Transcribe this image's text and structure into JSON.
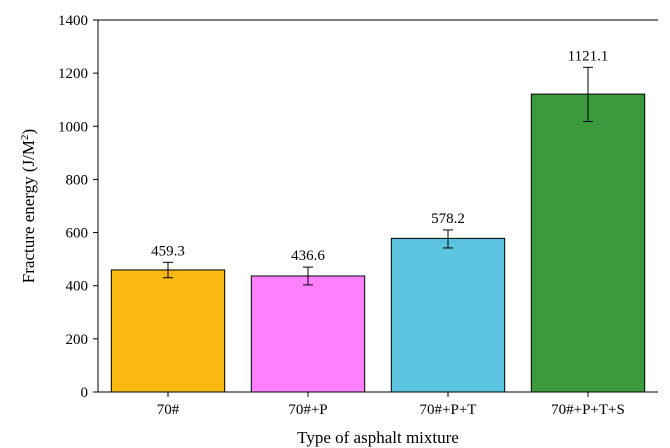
{
  "chart_data": {
    "type": "bar",
    "categories": [
      "70#",
      "70#+P",
      "70#+P+T",
      "70#+P+T+S"
    ],
    "values": [
      459.3,
      436.6,
      578.2,
      1121.1
    ],
    "value_labels": [
      "459.3",
      "436.6",
      "578.2",
      "1121.1"
    ],
    "error_bars": [
      [
        430,
        488
      ],
      [
        403,
        470
      ],
      [
        542,
        610
      ],
      [
        1018,
        1222
      ]
    ],
    "colors": [
      "#FDB913",
      "#FF80FF",
      "#5BC4DE",
      "#3B9A3B"
    ],
    "xlabel": "Type of asphalt mixture",
    "ylabel": "Fracture energy (J/M",
    "ylabel_superscript": "2",
    "ylabel_suffix": ")",
    "ylim": [
      0,
      1400
    ],
    "yticks": [
      0,
      200,
      400,
      600,
      800,
      1000,
      1200,
      1400
    ],
    "grid": false,
    "legend": "none"
  }
}
